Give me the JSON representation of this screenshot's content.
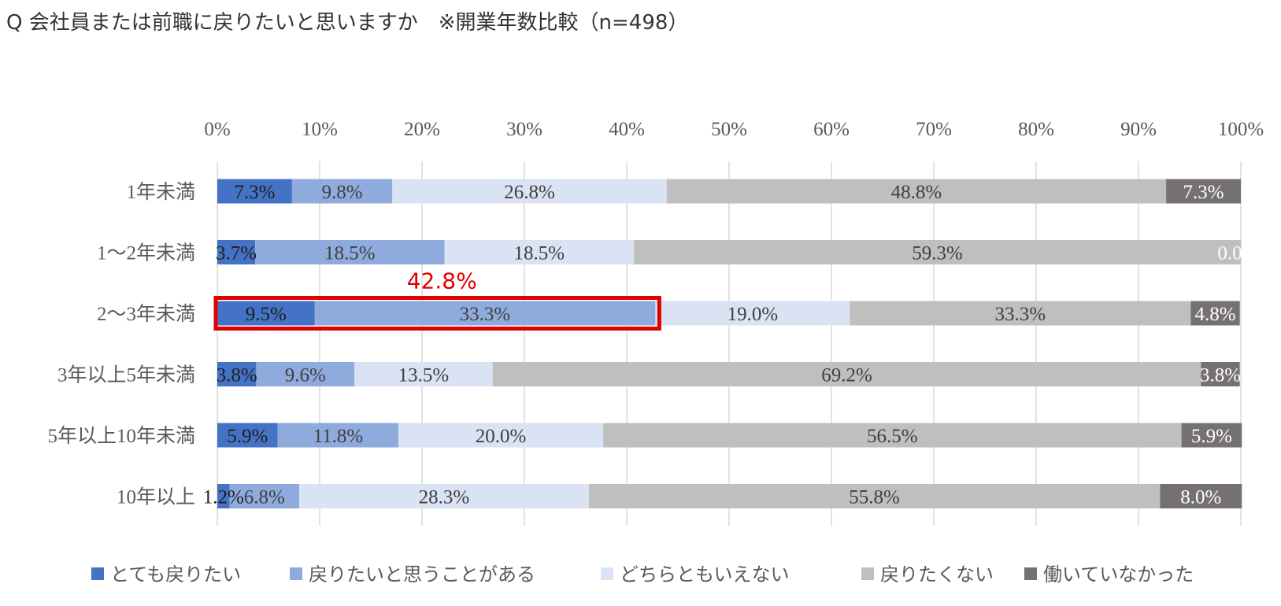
{
  "title": "Q 会社員または前職に戻りたいと思いますか　※開業年数比較（n=498）",
  "chart_data": {
    "type": "bar",
    "orientation": "horizontal",
    "stacked": "percent",
    "x_ticks": [
      "0%",
      "10%",
      "20%",
      "30%",
      "40%",
      "50%",
      "60%",
      "70%",
      "80%",
      "90%",
      "100%"
    ],
    "xlim": [
      0,
      100
    ],
    "grid": true,
    "legend_position": "bottom",
    "categories": [
      "1年未満",
      "1～2年未満",
      "2～3年未満",
      "3年以上5年未満",
      "5年以上10年未満",
      "10年以上"
    ],
    "series": [
      {
        "name": "とても戻りたい",
        "color": "#4472c4",
        "label_color": "#1f1f1f",
        "values": [
          7.3,
          3.7,
          9.5,
          3.8,
          5.9,
          1.2
        ],
        "labels": [
          "7.3%",
          "3.7%",
          "9.5%",
          "3.8%",
          "5.9%",
          "1.2%"
        ]
      },
      {
        "name": "戻りたいと思うことがある",
        "color": "#8faadc",
        "label_color": "#404040",
        "values": [
          9.8,
          18.5,
          33.3,
          9.6,
          11.8,
          6.8
        ],
        "labels": [
          "9.8%",
          "18.5%",
          "33.3%",
          "9.6%",
          "11.8%",
          "6.8%"
        ]
      },
      {
        "name": "どちらともいえない",
        "color": "#dae3f3",
        "label_color": "#404040",
        "values": [
          26.8,
          18.5,
          19.0,
          13.5,
          20.0,
          28.3
        ],
        "labels": [
          "26.8%",
          "18.5%",
          "19.0%",
          "13.5%",
          "20.0%",
          "28.3%"
        ]
      },
      {
        "name": "戻りたくない",
        "color": "#bfbfbf",
        "label_color": "#404040",
        "values": [
          48.8,
          59.3,
          33.3,
          69.2,
          56.5,
          55.8
        ],
        "labels": [
          "48.8%",
          "59.3%",
          "33.3%",
          "69.2%",
          "56.5%",
          "55.8%"
        ]
      },
      {
        "name": "働いていなかった",
        "color": "#767171",
        "label_color": "#ffffff",
        "values": [
          7.3,
          0.0,
          4.8,
          3.8,
          5.9,
          8.0
        ],
        "labels": [
          "7.3%",
          "0.0",
          "4.8%",
          "3.8%",
          "5.9%",
          "8.0%"
        ]
      }
    ],
    "annotation": {
      "text": "42.8%",
      "category": "2～3年未満",
      "spans_series": [
        "とても戻りたい",
        "戻りたいと思うことがある"
      ],
      "color": "#e00000"
    }
  }
}
